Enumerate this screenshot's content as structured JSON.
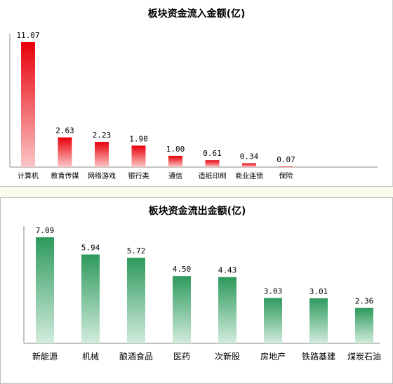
{
  "colors": {
    "inflow_dark": "#e8000a",
    "inflow_light": "#fbc6c6",
    "outflow_dark": "#2e9a5d",
    "outflow_light": "#d2ecdd",
    "axis": "#666666"
  },
  "chart_data": [
    {
      "type": "bar",
      "title": "板块资金流入金额(亿)",
      "categories": [
        "计算机",
        "教育传媒",
        "网络游戏",
        "银行类",
        "通信",
        "造纸印刷",
        "商业连锁",
        "保险"
      ],
      "values": [
        11.07,
        2.63,
        2.23,
        1.9,
        1.0,
        0.61,
        0.34,
        0.07
      ],
      "value_labels": [
        "11.07",
        "2.63",
        "2.23",
        "1.90",
        "1.00",
        "0.61",
        "0.34",
        "0.07"
      ],
      "ylim": [
        0,
        11.07
      ],
      "grid": false,
      "xlabel": "",
      "ylabel": ""
    },
    {
      "type": "bar",
      "title": "板块资金流出金额(亿)",
      "categories": [
        "新能源",
        "机械",
        "酿酒食品",
        "医药",
        "次新股",
        "房地产",
        "铁路基建",
        "煤炭石油"
      ],
      "values": [
        7.09,
        5.94,
        5.72,
        4.5,
        4.43,
        3.03,
        3.01,
        2.36
      ],
      "value_labels": [
        "7.09",
        "5.94",
        "5.72",
        "4.50",
        "4.43",
        "3.03",
        "3.01",
        "2.36"
      ],
      "ylim": [
        0,
        7.09
      ],
      "grid": false,
      "xlabel": "",
      "ylabel": ""
    }
  ]
}
